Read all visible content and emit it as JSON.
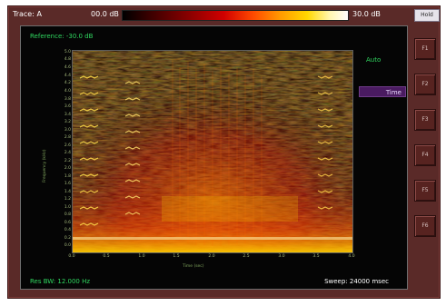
{
  "topbar": {
    "trace_label": "Trace: A",
    "min_db": "00.0 dB",
    "max_db": "30.0 dB",
    "hold_button": "Hold"
  },
  "screen": {
    "reference": "Reference: -30.0 dB",
    "res_bw": "Res BW: 12.000 Hz",
    "sweep": "Sweep: 24000 msec",
    "mode_auto": "Auto",
    "mode_time": "Time"
  },
  "axes": {
    "y_title": "Frequency (kHz)",
    "x_title": "Time (sec)",
    "y_ticks": [
      "5.0",
      "4.8",
      "4.6",
      "4.4",
      "4.2",
      "4.0",
      "3.8",
      "3.6",
      "3.4",
      "3.2",
      "3.0",
      "2.8",
      "2.6",
      "2.4",
      "2.2",
      "2.0",
      "1.8",
      "1.6",
      "1.4",
      "1.2",
      "1.0",
      "0.8",
      "0.6",
      "0.4",
      "0.2",
      "0.0"
    ],
    "x_ticks": [
      "0.0",
      "0.5",
      "1.0",
      "1.5",
      "2.0",
      "2.5",
      "3.0",
      "3.5",
      "4.0"
    ]
  },
  "function_keys": [
    "F1",
    "F2",
    "F3",
    "F4",
    "F5",
    "F6"
  ],
  "colors": {
    "bezel": "#5a2a28",
    "screen": "#050505",
    "accent_green": "#30d860",
    "selected_mode": "#4a1b61"
  }
}
